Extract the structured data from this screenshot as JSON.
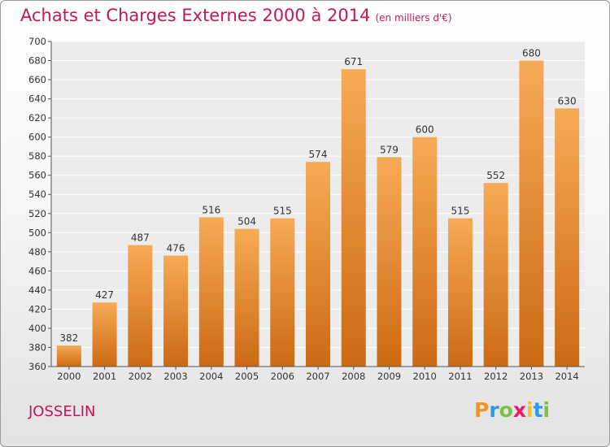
{
  "title": "Achats et Charges Externes 2000 à 2014",
  "unit_note": "(en milliers d'€)",
  "location": "JOSSELIN",
  "brand": {
    "letters": [
      "P",
      "r",
      "o",
      "x",
      "i",
      "t",
      "i"
    ],
    "colors": [
      "#f7941d",
      "#2e9be0",
      "#7cc242",
      "#ec1c6b",
      "#f7c21d",
      "#2e9be0",
      "#7cc242"
    ]
  },
  "colors": {
    "title": "#c2185b",
    "bar_top": "#f7aa55",
    "bar_bottom": "#cc6a12",
    "grid": "#ffffff"
  },
  "chart_data": {
    "type": "bar",
    "categories": [
      "2000",
      "2001",
      "2002",
      "2003",
      "2004",
      "2005",
      "2006",
      "2007",
      "2008",
      "2009",
      "2010",
      "2011",
      "2012",
      "2013",
      "2014"
    ],
    "values": [
      382,
      427,
      487,
      476,
      516,
      504,
      515,
      574,
      671,
      579,
      600,
      515,
      552,
      680,
      630
    ],
    "ylim": [
      360,
      700
    ],
    "ytick_step": 20,
    "grid": true,
    "xlabel": "",
    "ylabel": ""
  }
}
